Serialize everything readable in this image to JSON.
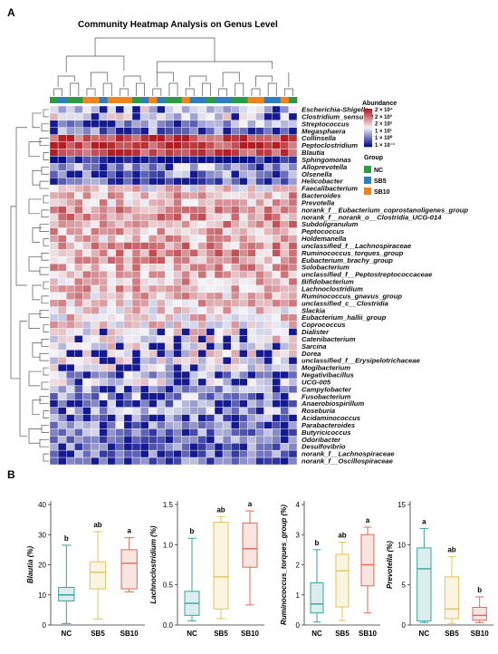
{
  "panel_a_label": "A",
  "panel_b_label": "B",
  "chart_data": [
    {
      "type": "heatmap",
      "title": "Community Heatmap Analysis on Genus Level",
      "scale_title": "Abundance",
      "scale_ticks": [
        "2 × 10⁴",
        "2 × 10³",
        "2 × 10²",
        "1 × 10¹",
        "1 × 10⁰",
        "1 × 10⁻¹"
      ],
      "colors": {
        "low": "#0a0f8c",
        "mid": "#f4f4f8",
        "high": "#b21d24"
      },
      "group_title": "Group",
      "groups": [
        {
          "name": "NC",
          "color": "#2e9a45"
        },
        {
          "name": "SB5",
          "color": "#2f7fbf"
        },
        {
          "name": "SB10",
          "color": "#f0831f"
        }
      ],
      "sample_groups": [
        "NC",
        "SB5",
        "NC",
        "NC",
        "SB10",
        "SB10",
        "SB5",
        "SB10",
        "SB10",
        "SB10",
        "NC",
        "SB5",
        "SB10",
        "SB5",
        "NC",
        "NC",
        "SB10",
        "SB5",
        "SB5",
        "NC",
        "SB5",
        "SB5",
        "NC",
        "NC",
        "SB10",
        "SB10",
        "SB5",
        "SB5",
        "SB10",
        "NC"
      ],
      "rows": [
        "Escherichia-Shigella",
        "Clostridium_sensu_st",
        "Streptococcus",
        "Megasphaera",
        "Collinsella",
        "Peptoclostridium",
        "Blautia",
        "Sphingomonas",
        "Alloprevotella",
        "Olsenella",
        "Helicobacter",
        "Faecalibacterium",
        "Bacteroides",
        "Prevotella",
        "norank_f__Eubacterium_coprostanoligenes_group",
        "norank_f__norank_o__Clostridia_UCG-014",
        "Subdoligranulum",
        "Peptococcus",
        "Holdemanella",
        "unclassified_f__Lachnospiraceae",
        "Ruminococcus_torques_group",
        "Eubacterium_brachy_group",
        "Solobacterium",
        "unclassified_f__Peptostreptococcaceae",
        "Bifidobacterium",
        "Lachnoclostridium",
        "Ruminococcus_gnavus_group",
        "unclassified_c__Clostridia",
        "Slackia",
        "Eubacterium_hallii_group",
        "Coprococcus",
        "Dialister",
        "Catenibacterium",
        "Sarcina",
        "Dorea",
        "unclassified_f__Erysipelotrichaceae",
        "Mogibacterium",
        "Negativibacillus",
        "UCG-005",
        "Campylobacter",
        "Fusobacterium",
        "Anaerobiospirillum",
        "Roseburia",
        "Acidaminococcus",
        "Parabacteroides",
        "Butyricicoccus",
        "Odoribacter",
        "Desulfovibrio",
        "norank_f__Lachnospiraceae",
        "norank_f__Oscillospiraceae"
      ],
      "row_base": [
        -0.1,
        -0.05,
        -0.3,
        -0.5,
        0.8,
        0.85,
        0.88,
        -0.95,
        -0.3,
        -0.45,
        -0.55,
        0.1,
        0.35,
        0.25,
        0.45,
        0.42,
        0.38,
        0.3,
        0.28,
        0.4,
        0.42,
        0.38,
        0.33,
        0.3,
        0.3,
        0.28,
        0.26,
        0.22,
        0.18,
        0.16,
        0.12,
        0.05,
        0.05,
        0.02,
        0.0,
        0.0,
        -0.05,
        -0.3,
        -0.1,
        -0.35,
        -0.35,
        -0.4,
        -0.3,
        -0.45,
        -0.35,
        -0.5,
        -0.5,
        -0.55,
        -0.55,
        -0.55
      ]
    },
    {
      "type": "box",
      "ylabel": "Blautia (%)",
      "ylim": [
        0,
        40
      ],
      "ticks": [
        0,
        10,
        20,
        30,
        40
      ],
      "categories": [
        "NC",
        "SB5",
        "SB10"
      ],
      "letters": [
        "b",
        "ab",
        "a"
      ],
      "boxes": [
        {
          "min": 0.5,
          "q1": 8,
          "median": 10,
          "q3": 12.5,
          "max": 26.5
        },
        {
          "min": 2,
          "q1": 12,
          "median": 17.5,
          "q3": 21,
          "max": 31
        },
        {
          "min": 11,
          "q1": 12,
          "median": 20.5,
          "q3": 25,
          "max": 29
        }
      ]
    },
    {
      "type": "box",
      "ylabel": "Lachnoclostridium (%)",
      "ylim": [
        0,
        1.5
      ],
      "ticks": [
        0.0,
        0.5,
        1.0,
        1.5
      ],
      "categories": [
        "NC",
        "SB5",
        "SB10"
      ],
      "letters": [
        "b",
        "ab",
        "a"
      ],
      "boxes": [
        {
          "min": 0.05,
          "q1": 0.12,
          "median": 0.27,
          "q3": 0.42,
          "max": 1.08
        },
        {
          "min": 0.08,
          "q1": 0.2,
          "median": 0.6,
          "q3": 1.28,
          "max": 1.35
        },
        {
          "min": 0.25,
          "q1": 0.72,
          "median": 0.95,
          "q3": 1.27,
          "max": 1.42
        }
      ]
    },
    {
      "type": "box",
      "ylabel": "Ruminococcus_torques_group (%)",
      "ylim": [
        0,
        4
      ],
      "ticks": [
        0,
        1,
        2,
        3,
        4
      ],
      "categories": [
        "NC",
        "SB5",
        "SB10"
      ],
      "letters": [
        "b",
        "ab",
        "a"
      ],
      "boxes": [
        {
          "min": 0.1,
          "q1": 0.4,
          "median": 0.7,
          "q3": 1.4,
          "max": 2.5
        },
        {
          "min": 0.15,
          "q1": 0.6,
          "median": 1.8,
          "q3": 2.35,
          "max": 2.75
        },
        {
          "min": 0.4,
          "q1": 1.3,
          "median": 2.0,
          "q3": 3.0,
          "max": 3.25
        }
      ]
    },
    {
      "type": "box",
      "ylabel": "Prevotella (%)",
      "ylim": [
        0,
        15
      ],
      "ticks": [
        0,
        5,
        10,
        15
      ],
      "categories": [
        "NC",
        "SB5",
        "SB10"
      ],
      "letters": [
        "a",
        "ab",
        "b"
      ],
      "boxes": [
        {
          "min": 0.3,
          "q1": 0.5,
          "median": 7,
          "q3": 9.6,
          "max": 12
        },
        {
          "min": 0.2,
          "q1": 0.8,
          "median": 2,
          "q3": 6,
          "max": 8.5
        },
        {
          "min": 0.3,
          "q1": 0.6,
          "median": 1.2,
          "q3": 2.2,
          "max": 3.5
        }
      ]
    }
  ]
}
